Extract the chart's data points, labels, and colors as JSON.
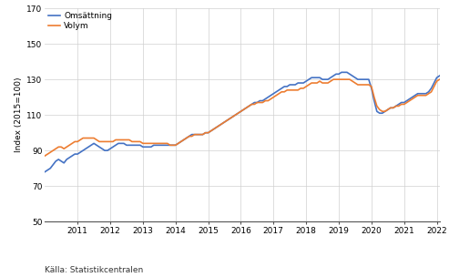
{
  "title": "",
  "ylabel": "Index (2015=100)",
  "xlabel": "",
  "source": "Källa: Statistikcentralen",
  "ylim": [
    50,
    170
  ],
  "yticks": [
    50,
    70,
    90,
    110,
    130,
    150,
    170
  ],
  "line_omsattning_color": "#4472c4",
  "line_volym_color": "#ed7d31",
  "line_width": 1.2,
  "legend_labels": [
    "Omsättning",
    "Volym"
  ],
  "omsattning": [
    78,
    79,
    80,
    82,
    84,
    85,
    84,
    83,
    85,
    86,
    87,
    88,
    88,
    89,
    90,
    91,
    92,
    93,
    94,
    93,
    92,
    91,
    90,
    90,
    91,
    92,
    93,
    94,
    94,
    94,
    93,
    93,
    93,
    93,
    93,
    93,
    92,
    92,
    92,
    92,
    93,
    93,
    93,
    93,
    93,
    93,
    93,
    93,
    93,
    94,
    95,
    96,
    97,
    98,
    99,
    99,
    99,
    99,
    99,
    100,
    100,
    101,
    102,
    103,
    104,
    105,
    106,
    107,
    108,
    109,
    110,
    111,
    112,
    113,
    114,
    115,
    116,
    117,
    117,
    118,
    118,
    119,
    120,
    121,
    122,
    123,
    124,
    125,
    126,
    126,
    127,
    127,
    127,
    128,
    128,
    128,
    129,
    130,
    131,
    131,
    131,
    131,
    130,
    130,
    130,
    131,
    132,
    133,
    133,
    134,
    134,
    134,
    133,
    132,
    131,
    130,
    130,
    130,
    130,
    130,
    125,
    118,
    112,
    111,
    111,
    112,
    113,
    114,
    114,
    115,
    116,
    117,
    117,
    118,
    119,
    120,
    121,
    122,
    122,
    122,
    122,
    123,
    125,
    128,
    131,
    132,
    133,
    132,
    131,
    131,
    131
  ],
  "volym": [
    87,
    88,
    89,
    90,
    91,
    92,
    92,
    91,
    92,
    93,
    94,
    95,
    95,
    96,
    97,
    97,
    97,
    97,
    97,
    96,
    95,
    95,
    95,
    95,
    95,
    95,
    96,
    96,
    96,
    96,
    96,
    96,
    95,
    95,
    95,
    95,
    94,
    94,
    94,
    94,
    94,
    94,
    94,
    94,
    94,
    94,
    93,
    93,
    93,
    94,
    95,
    96,
    97,
    98,
    98,
    99,
    99,
    99,
    99,
    100,
    100,
    101,
    102,
    103,
    104,
    105,
    106,
    107,
    108,
    109,
    110,
    111,
    112,
    113,
    114,
    115,
    116,
    116,
    117,
    117,
    117,
    118,
    118,
    119,
    120,
    121,
    122,
    123,
    123,
    124,
    124,
    124,
    124,
    124,
    125,
    125,
    126,
    127,
    128,
    128,
    128,
    129,
    128,
    128,
    128,
    129,
    130,
    130,
    130,
    130,
    130,
    130,
    130,
    129,
    128,
    127,
    127,
    127,
    127,
    127,
    126,
    120,
    115,
    113,
    112,
    112,
    113,
    114,
    114,
    115,
    115,
    116,
    116,
    117,
    118,
    119,
    120,
    121,
    121,
    121,
    121,
    122,
    123,
    126,
    129,
    130,
    130,
    129,
    129,
    129,
    129
  ],
  "xtick_years": [
    2011,
    2012,
    2013,
    2014,
    2015,
    2016,
    2017,
    2018,
    2019,
    2020,
    2021,
    2022
  ],
  "xlim": [
    2010.0,
    2022.1
  ],
  "grid_color": "#d0d0d0",
  "spine_color": "#555555",
  "tick_label_size": 6.5,
  "ylabel_size": 6.5,
  "source_size": 6.5
}
